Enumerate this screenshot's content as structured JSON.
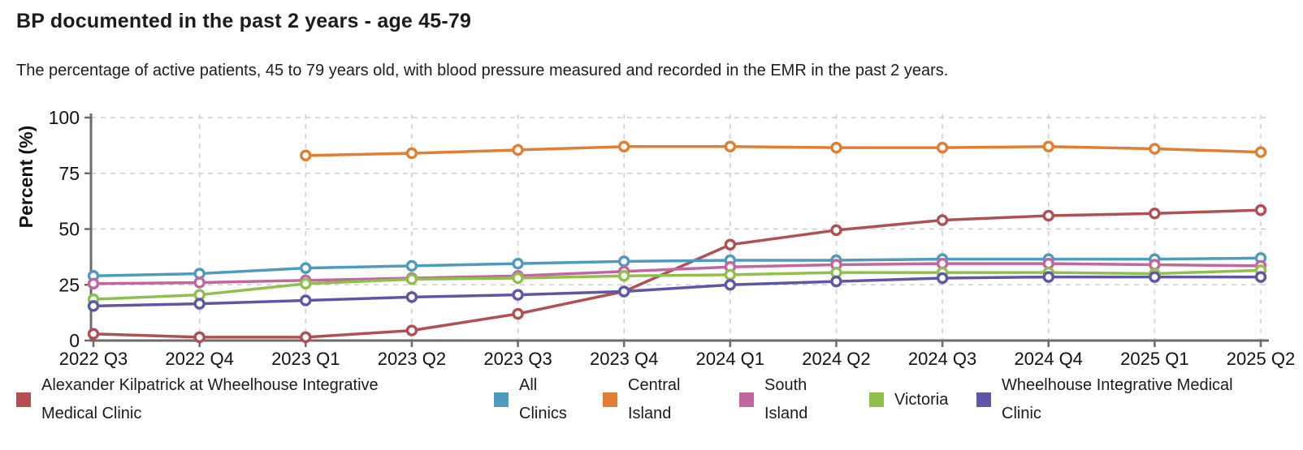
{
  "chart_data": {
    "type": "line",
    "title": "BP documented in the past 2 years - age 45-79",
    "subtitle": "The percentage of active patients, 45 to 79 years old, with blood pressure measured and recorded in the EMR in the past 2 years.",
    "xlabel": "",
    "ylabel": "Percent (%)",
    "ylim": [
      0,
      100
    ],
    "yticks": [
      0,
      25,
      50,
      75,
      100
    ],
    "grid": true,
    "grid_style": "dashed",
    "legend_position": "bottom",
    "marker": "open-circle",
    "axis_color": "#6b6b6b",
    "grid_color": "#cfcfcf",
    "categories": [
      "2022 Q3",
      "2022 Q4",
      "2023 Q1",
      "2023 Q2",
      "2023 Q3",
      "2023 Q4",
      "2024 Q1",
      "2024 Q2",
      "2024 Q3",
      "2024 Q4",
      "2025 Q1",
      "2025 Q2"
    ],
    "series": [
      {
        "name": "Alexander Kilpatrick at Wheelhouse Integrative Medical Clinic",
        "color": "#b05052",
        "values": [
          3,
          1.5,
          1.5,
          4.5,
          12,
          22,
          43,
          49.5,
          54,
          56,
          57,
          58.5
        ]
      },
      {
        "name": "All Clinics",
        "color": "#4e9bbf",
        "values": [
          29,
          30,
          32.5,
          33.5,
          34.5,
          35.5,
          36,
          36,
          36.5,
          36.5,
          36.5,
          37
        ]
      },
      {
        "name": "Central Island",
        "color": "#e27e32",
        "values": [
          null,
          null,
          83,
          84,
          85.5,
          87,
          87,
          86.5,
          86.5,
          87,
          86,
          84.5
        ]
      },
      {
        "name": "South Island",
        "color": "#c2679e",
        "values": [
          25.5,
          26,
          27,
          28,
          29,
          31,
          33,
          34,
          34.5,
          34.5,
          34,
          33.5
        ]
      },
      {
        "name": "Victoria",
        "color": "#8fc04c",
        "values": [
          18.5,
          20.5,
          25.5,
          27.5,
          28,
          29,
          29.5,
          30.5,
          30.5,
          30.5,
          30,
          31.5
        ]
      },
      {
        "name": "Wheelhouse Integrative Medical Clinic",
        "color": "#5f57a5",
        "values": [
          15.5,
          16.5,
          18,
          19.5,
          20.5,
          22,
          25,
          26.5,
          28,
          28.5,
          28.5,
          28.5
        ]
      }
    ]
  }
}
